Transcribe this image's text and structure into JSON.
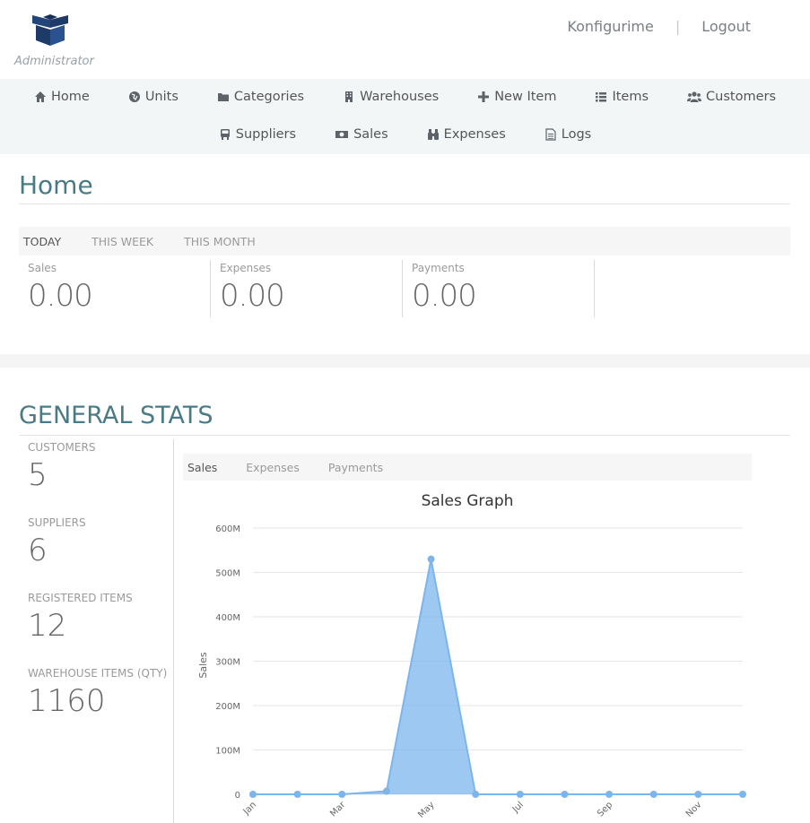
{
  "header": {
    "role_label": "Administrator",
    "links": {
      "config": "Konfigurime",
      "separator": "|",
      "logout": "Logout"
    }
  },
  "nav": {
    "row1": [
      {
        "label": "Home",
        "icon": "home-icon"
      },
      {
        "label": "Units",
        "icon": "globe-icon"
      },
      {
        "label": "Categories",
        "icon": "folder-icon"
      },
      {
        "label": "Warehouses",
        "icon": "building-icon"
      },
      {
        "label": "New Item",
        "icon": "plus-icon"
      },
      {
        "label": "Items",
        "icon": "list-icon"
      },
      {
        "label": "Customers",
        "icon": "users-icon"
      }
    ],
    "row2": [
      {
        "label": "Suppliers",
        "icon": "truck-icon"
      },
      {
        "label": "Sales",
        "icon": "money-icon"
      },
      {
        "label": "Expenses",
        "icon": "binoculars-icon"
      },
      {
        "label": "Logs",
        "icon": "file-icon"
      }
    ]
  },
  "home": {
    "title": "Home",
    "period_tabs": [
      "TODAY",
      "THIS WEEK",
      "THIS MONTH"
    ],
    "active_period": "TODAY",
    "tiles": [
      {
        "label": "Sales",
        "value": "0.00"
      },
      {
        "label": "Expenses",
        "value": "0.00"
      },
      {
        "label": "Payments",
        "value": "0.00"
      }
    ]
  },
  "general_stats": {
    "title": "GENERAL STATS",
    "items": [
      {
        "label": "CUSTOMERS",
        "value": "5"
      },
      {
        "label": "SUPPLIERS",
        "value": "6"
      },
      {
        "label": "REGISTERED ITEMS",
        "value": "12"
      },
      {
        "label": "WAREHOUSE ITEMS (QTY)",
        "value": "1160"
      }
    ],
    "graph_tabs": [
      "Sales",
      "Expenses",
      "Payments"
    ],
    "active_graph_tab": "Sales"
  },
  "chart_data": {
    "type": "area",
    "title": "Sales Graph",
    "ylabel": "Sales",
    "xlabel": "",
    "x": [
      "Jan",
      "Feb",
      "Mar",
      "Apr",
      "May",
      "Jun",
      "Jul",
      "Aug",
      "Sep",
      "Oct",
      "Nov",
      "Dec"
    ],
    "x_tick_labels": [
      "Jan",
      "Mar",
      "May",
      "Jul",
      "Sep",
      "Nov"
    ],
    "y_tick_labels": [
      "0",
      "100M",
      "200M",
      "300M",
      "400M",
      "500M",
      "600M"
    ],
    "ylim": [
      0,
      600000000
    ],
    "series": [
      {
        "values": [
          0,
          0,
          0,
          7000000,
          530000000,
          0,
          0,
          0,
          0,
          0,
          0,
          0
        ]
      }
    ],
    "color": "#7cb5ec",
    "grid": true
  }
}
